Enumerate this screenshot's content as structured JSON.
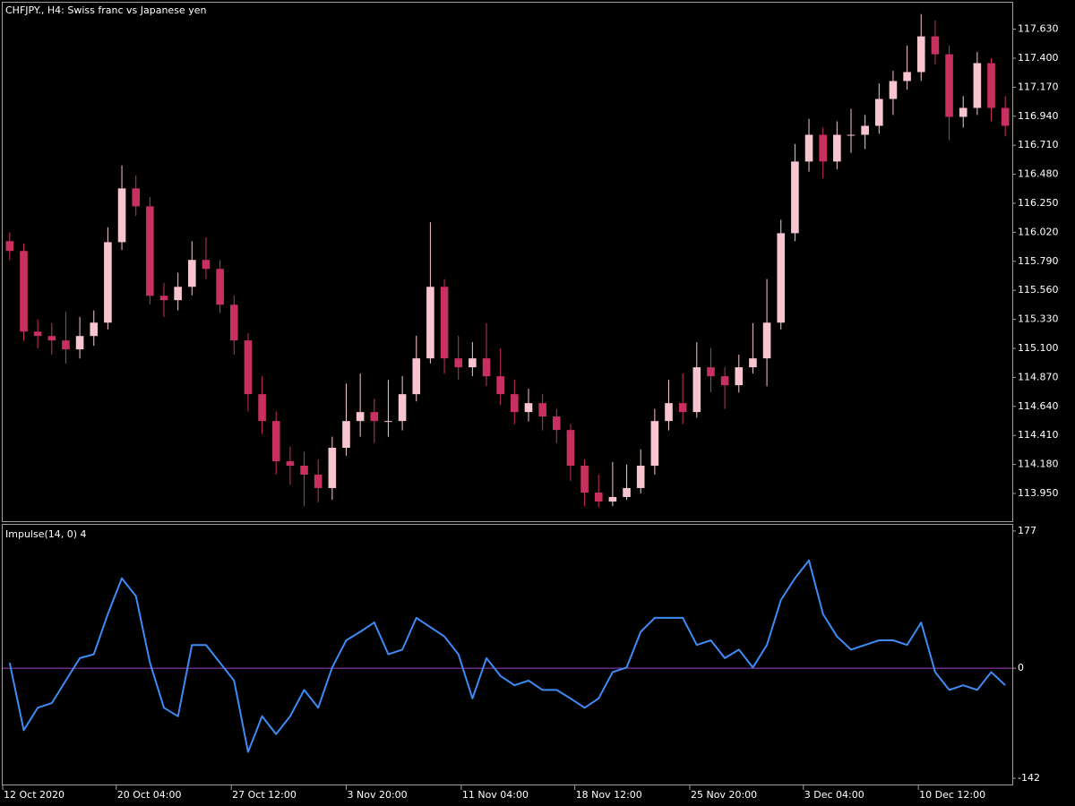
{
  "chart_data": [
    {
      "type": "candlestick",
      "title": "CHFJPY., H4:  Swiss franc vs Japanese yen",
      "up_color": "#f7c5cf",
      "down_color": "#c8305f",
      "xlim": [
        -0.5,
        71.5
      ],
      "ylim": [
        113.73,
        117.84
      ],
      "yticks": [
        {
          "value": 117.63,
          "label": "117.630"
        },
        {
          "value": 117.4,
          "label": "117.400"
        },
        {
          "value": 117.17,
          "label": "117.170"
        },
        {
          "value": 116.94,
          "label": "116.940"
        },
        {
          "value": 116.71,
          "label": "116.710"
        },
        {
          "value": 116.48,
          "label": "116.480"
        },
        {
          "value": 116.25,
          "label": "116.250"
        },
        {
          "value": 116.02,
          "label": "116.020"
        },
        {
          "value": 115.79,
          "label": "115.790"
        },
        {
          "value": 115.56,
          "label": "115.560"
        },
        {
          "value": 115.33,
          "label": "115.330"
        },
        {
          "value": 115.1,
          "label": "115.100"
        },
        {
          "value": 114.87,
          "label": "114.870"
        },
        {
          "value": 114.64,
          "label": "114.640"
        },
        {
          "value": 114.41,
          "label": "114.410"
        },
        {
          "value": 114.18,
          "label": "114.180"
        },
        {
          "value": 113.95,
          "label": "113.950"
        }
      ],
      "open": [
        115.95,
        115.872,
        115.233,
        115.198,
        115.163,
        115.092,
        115.198,
        115.304,
        115.942,
        116.368,
        116.226,
        115.517,
        115.482,
        115.588,
        115.801,
        115.73,
        115.446,
        115.163,
        114.737,
        114.524,
        114.205,
        114.17,
        114.099,
        113.993,
        114.312,
        114.524,
        114.595,
        114.524,
        114.524,
        114.737,
        115.021,
        115.588,
        115.021,
        114.95,
        115.021,
        114.879,
        114.737,
        114.595,
        114.666,
        114.56,
        114.453,
        114.17,
        113.957,
        113.886,
        113.922,
        113.993,
        114.17,
        114.524,
        114.666,
        114.595,
        114.95,
        114.879,
        114.808,
        114.95,
        115.021,
        115.304,
        116.013,
        116.581,
        116.793,
        116.581,
        116.793,
        116.793,
        116.864,
        117.077,
        117.219,
        117.29,
        117.573,
        117.431,
        116.935,
        117.006,
        117.361,
        117.006
      ],
      "high": [
        116.02,
        115.93,
        115.33,
        115.3,
        115.39,
        115.35,
        115.4,
        116.06,
        116.55,
        116.47,
        116.3,
        115.62,
        115.7,
        115.95,
        115.98,
        115.8,
        115.52,
        115.22,
        114.88,
        114.6,
        114.32,
        114.28,
        114.22,
        114.4,
        114.82,
        114.9,
        114.7,
        114.85,
        114.88,
        115.2,
        116.1,
        115.65,
        115.2,
        115.15,
        115.3,
        115.1,
        114.85,
        114.78,
        114.74,
        114.62,
        114.5,
        114.22,
        114.1,
        114.2,
        114.18,
        114.3,
        114.62,
        114.85,
        114.9,
        115.15,
        115.1,
        114.95,
        115.05,
        115.3,
        115.65,
        116.12,
        116.72,
        116.92,
        116.85,
        116.9,
        117.0,
        116.95,
        117.2,
        117.3,
        117.5,
        117.75,
        117.7,
        117.5,
        117.1,
        117.45,
        117.4,
        117.1
      ],
      "low": [
        115.8,
        115.16,
        115.1,
        115.05,
        114.98,
        115.02,
        115.12,
        115.25,
        115.88,
        116.15,
        115.45,
        115.35,
        115.4,
        115.52,
        115.65,
        115.38,
        115.05,
        114.6,
        114.42,
        114.1,
        114.02,
        113.85,
        113.88,
        113.9,
        114.25,
        114.4,
        114.35,
        114.4,
        114.45,
        114.68,
        114.98,
        114.9,
        114.85,
        114.88,
        114.8,
        114.65,
        114.5,
        114.52,
        114.45,
        114.35,
        114.05,
        113.85,
        113.84,
        113.85,
        113.9,
        113.95,
        114.1,
        114.45,
        114.5,
        114.55,
        114.75,
        114.62,
        114.75,
        114.9,
        114.8,
        115.25,
        115.95,
        116.5,
        116.45,
        116.52,
        116.65,
        116.68,
        116.8,
        116.95,
        117.15,
        117.22,
        117.35,
        116.75,
        116.85,
        116.95,
        116.9,
        116.78
      ],
      "close": [
        115.872,
        115.233,
        115.198,
        115.163,
        115.092,
        115.198,
        115.304,
        115.942,
        116.368,
        116.226,
        115.517,
        115.482,
        115.588,
        115.801,
        115.73,
        115.446,
        115.163,
        114.737,
        114.524,
        114.205,
        114.17,
        114.099,
        113.993,
        114.312,
        114.524,
        114.595,
        114.524,
        114.524,
        114.737,
        115.021,
        115.588,
        115.021,
        114.95,
        115.021,
        114.879,
        114.737,
        114.595,
        114.666,
        114.56,
        114.453,
        114.17,
        113.957,
        113.886,
        113.922,
        113.993,
        114.17,
        114.524,
        114.666,
        114.595,
        114.95,
        114.879,
        114.808,
        114.95,
        115.021,
        115.304,
        116.013,
        116.581,
        116.793,
        116.581,
        116.793,
        116.793,
        116.864,
        117.077,
        117.219,
        117.29,
        117.573,
        117.431,
        116.935,
        117.006,
        117.361,
        117.006,
        116.864
      ]
    },
    {
      "type": "line",
      "title": "Impulse(14, 0) 4",
      "color": "#3d8bf5",
      "level": 0,
      "level_color": "#a040c8",
      "xlim": [
        -0.5,
        71.5
      ],
      "ylim": [
        -150,
        185
      ],
      "yticks": [
        177,
        0,
        -142
      ],
      "xticks": [
        {
          "value": -0.5,
          "label": "12 Oct 2020"
        },
        {
          "value": 7.6,
          "label": "20 Oct 04:00"
        },
        {
          "value": 15.8,
          "label": "27 Oct 12:00"
        },
        {
          "value": 24.0,
          "label": "3 Nov 20:00"
        },
        {
          "value": 32.2,
          "label": "11 Nov 04:00"
        },
        {
          "value": 40.3,
          "label": "18 Nov 12:00"
        },
        {
          "value": 48.5,
          "label": "25 Nov 20:00"
        },
        {
          "value": 56.6,
          "label": "3 Dec 04:00"
        },
        {
          "value": 64.8,
          "label": "10 Dec 12:00"
        }
      ],
      "values": [
        7,
        -80,
        -51,
        -45,
        -16,
        13,
        18,
        70,
        116,
        93,
        7,
        -51,
        -62,
        30,
        30,
        7,
        -16,
        -108,
        -62,
        -85,
        -62,
        -28,
        -51,
        1,
        36,
        47,
        59,
        18,
        24,
        65,
        53,
        41,
        18,
        -39,
        13,
        -10,
        -22,
        -16,
        -28,
        -28,
        -39,
        -51,
        -39,
        -5,
        1,
        47,
        65,
        65,
        65,
        30,
        36,
        13,
        24,
        1,
        30,
        88,
        116,
        139,
        70,
        41,
        24,
        30,
        36,
        36,
        30,
        59,
        -5,
        -28,
        -22,
        -28,
        -5,
        -22
      ]
    }
  ]
}
